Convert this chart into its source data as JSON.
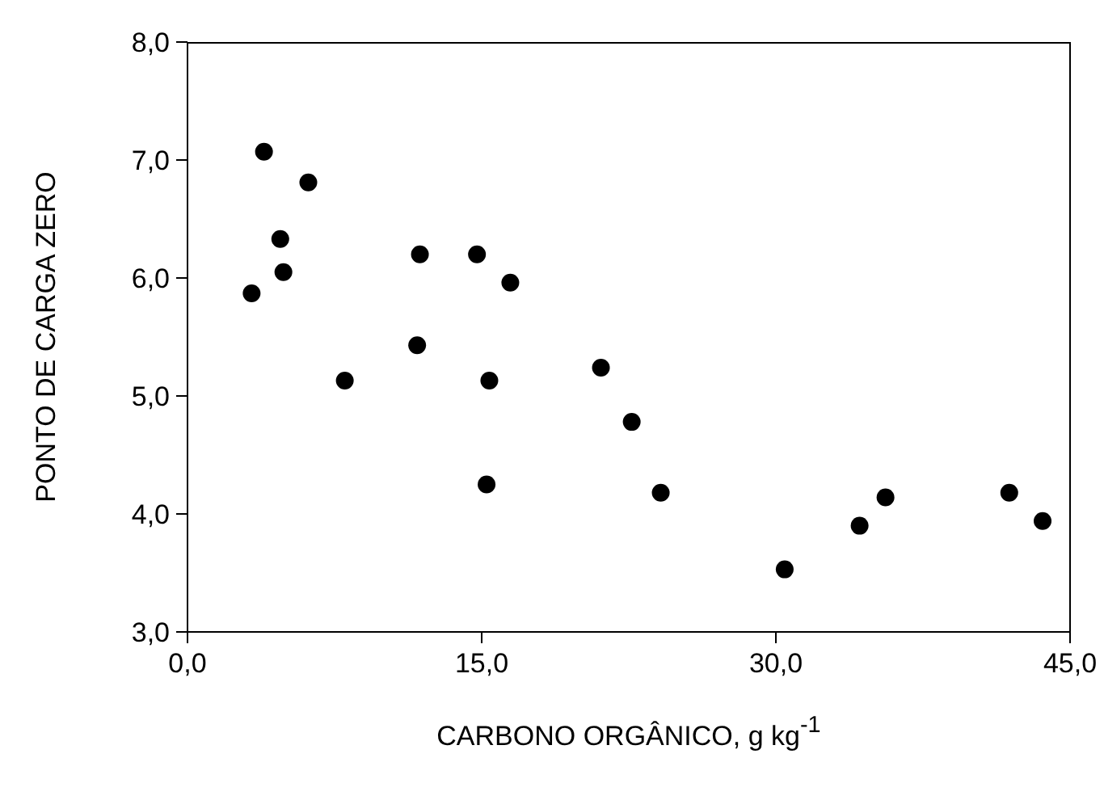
{
  "chart_data": {
    "type": "scatter",
    "xlabel": "CARBONO ORGÂNICO, g kg$^{-1}$",
    "ylabel": "PONTO DE CARGA ZERO",
    "xlim": [
      0,
      45
    ],
    "xticks": [
      {
        "value": 0,
        "label": "0,0"
      },
      {
        "value": 15,
        "label": "15,0"
      },
      {
        "value": 30,
        "label": "30,0"
      },
      {
        "value": 45,
        "label": "45,0"
      }
    ],
    "ylim": [
      3,
      8
    ],
    "yticks": [
      {
        "value": 3,
        "label": "3,0"
      },
      {
        "value": 4,
        "label": "4,0"
      },
      {
        "value": 5,
        "label": "5,0"
      },
      {
        "value": 6,
        "label": "6,0"
      },
      {
        "value": 7,
        "label": "7,0"
      },
      {
        "value": 8,
        "label": "8,0"
      }
    ],
    "marker": "circle",
    "grid": false,
    "legend": false,
    "series": [
      {
        "color": "#000000",
        "x": [
          3.9,
          6.16,
          4.73,
          4.89,
          3.27,
          8.02,
          11.85,
          11.71,
          14.76,
          16.46,
          15.39,
          15.25,
          21.08,
          22.65,
          24.13,
          30.45,
          34.27,
          35.59,
          41.9,
          43.6
        ],
        "values": [
          7.07,
          6.81,
          6.33,
          6.05,
          5.87,
          5.13,
          6.2,
          5.43,
          6.2,
          5.96,
          5.13,
          4.25,
          5.24,
          4.78,
          4.18,
          3.53,
          3.9,
          4.14,
          4.18,
          3.94
        ]
      }
    ]
  }
}
